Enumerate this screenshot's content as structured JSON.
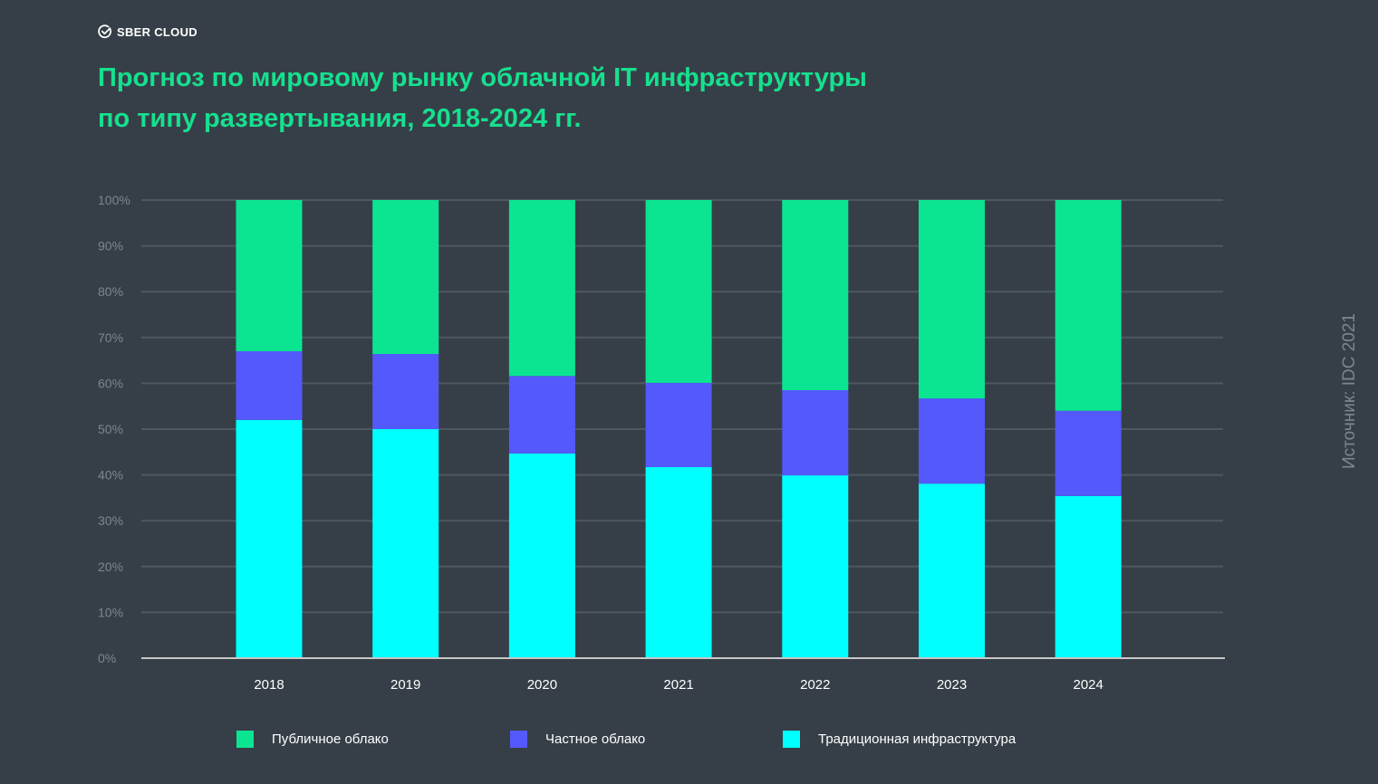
{
  "brand": {
    "name": "SBER CLOUD",
    "icon": "sber-check-logo-icon"
  },
  "title": {
    "line1": "Прогноз по мировому рынку облачной IT инфраструктуры",
    "line2": "по типу развертывания, 2018-2024 гг."
  },
  "source": "Источник: IDC 2021",
  "colors": {
    "background": "#363f48",
    "title": "#16e08e",
    "public_cloud": "#0be591",
    "private_cloud": "#5459fb",
    "traditional": "#00ffff",
    "grid": "#4f5861",
    "axis": "#c8c8c8",
    "tick_label": "#7d868f"
  },
  "chart_data": {
    "type": "bar",
    "stacked": true,
    "title": "Прогноз по мировому рынку облачной IT инфраструктуры по типу развертывания, 2018-2024 гг.",
    "xlabel": "",
    "ylabel": "",
    "ylim": [
      0,
      100
    ],
    "grid": true,
    "legend_position": "bottom",
    "categories": [
      "2018",
      "2019",
      "2020",
      "2021",
      "2022",
      "2023",
      "2024"
    ],
    "y_ticks": [
      "0%",
      "10%",
      "20%",
      "30%",
      "40%",
      "50%",
      "60%",
      "70%",
      "80%",
      "90%",
      "100%"
    ],
    "series": [
      {
        "name": "Традиционная инфраструктура",
        "color": "#00ffff",
        "values": [
          52.0,
          50.0,
          44.7,
          41.7,
          39.9,
          38.1,
          35.4
        ]
      },
      {
        "name": "Частное облако",
        "color": "#5459fb",
        "values": [
          15.0,
          16.4,
          16.9,
          18.4,
          18.6,
          18.6,
          18.6
        ]
      },
      {
        "name": "Публичное облако",
        "color": "#0be591",
        "values": [
          33.0,
          33.6,
          38.4,
          39.9,
          41.5,
          43.3,
          46.0
        ]
      }
    ]
  },
  "legend": [
    {
      "label": "Публичное облако",
      "color": "#0be591"
    },
    {
      "label": "Частное облако",
      "color": "#5459fb"
    },
    {
      "label": "Традиционная инфраструктура",
      "color": "#00ffff"
    }
  ]
}
